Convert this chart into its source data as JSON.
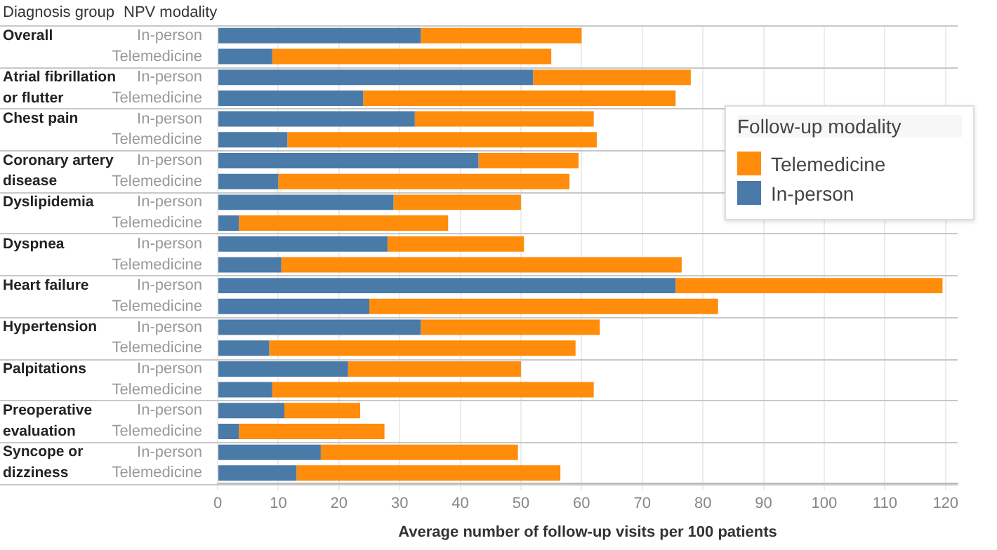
{
  "chart_data": {
    "type": "bar",
    "orientation": "horizontal",
    "stacked": true,
    "categories": [
      "In-person",
      "Telemedicine",
      "In-person",
      "Telemedicine",
      "In-person",
      "Telemedicine",
      "In-person",
      "Telemedicine",
      "In-person",
      "Telemedicine",
      "In-person",
      "Telemedicine",
      "In-person",
      "Telemedicine",
      "In-person",
      "Telemedicine",
      "In-person",
      "Telemedicine",
      "In-person",
      "Telemedicine",
      "In-person",
      "Telemedicine"
    ],
    "series": [
      {
        "name": "In-person",
        "color": "#4a7aa8",
        "values": [
          33.5,
          9,
          52,
          24,
          32.5,
          11.5,
          43,
          10,
          29,
          3.5,
          28,
          10.5,
          75.5,
          25,
          33.5,
          8.5,
          21.5,
          9,
          11,
          3.5,
          17,
          13
        ]
      },
      {
        "name": "Telemedicine",
        "color": "#ff8c0a",
        "values": [
          26.5,
          46,
          26,
          51.5,
          29.5,
          51,
          16.5,
          48,
          21,
          34.5,
          22.5,
          66,
          44,
          57.5,
          29.5,
          50.5,
          28.5,
          53,
          12.5,
          24,
          32.5,
          43.5
        ]
      }
    ],
    "xlim": [
      0,
      122
    ],
    "xticks": [
      0,
      10,
      20,
      30,
      40,
      50,
      60,
      70,
      80,
      90,
      100,
      110,
      120
    ],
    "xlabel": "Average number of follow-up visits per 100 patients",
    "ylabel": "NPV modality",
    "legend_title": "Follow-up modality",
    "legend": "right",
    "grid": "x",
    "annotations": [
      "Diagnosis group",
      "Overall",
      "Atrial fibrillation or flutter",
      "Chest pain",
      "Coronary artery disease",
      "Dyslipidemia",
      "Dyspnea",
      "Heart failure",
      "Hypertension",
      "Palpitations",
      "Preoperative evaluation",
      "Syncope or dizziness"
    ]
  }
}
